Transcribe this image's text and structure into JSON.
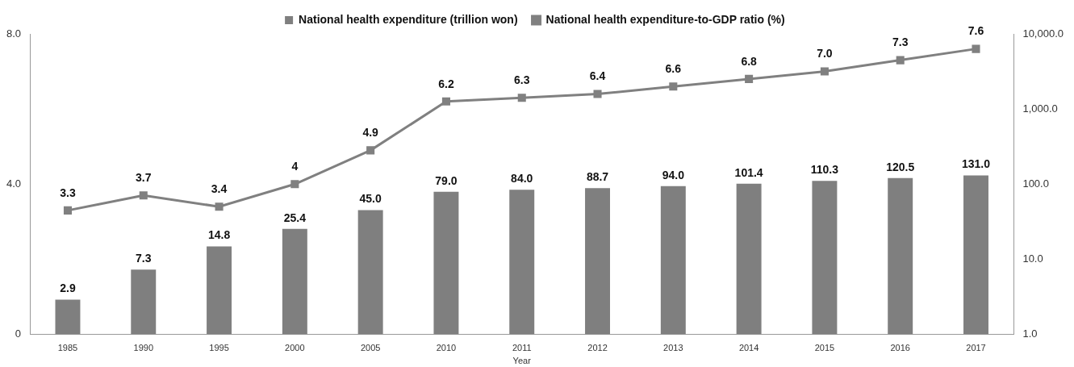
{
  "chart_data": {
    "type": "bar",
    "xlabel": "Year",
    "categories": [
      "1985",
      "1990",
      "1995",
      "2000",
      "2005",
      "2010",
      "2011",
      "2012",
      "2013",
      "2014",
      "2015",
      "2016",
      "2017"
    ],
    "series": [
      {
        "name": "National health expenditure (trillion won)",
        "axis": "y2",
        "color": "#7f7f7f",
        "values": [
          2.9,
          7.3,
          14.8,
          25.4,
          45.0,
          79.0,
          84.0,
          88.7,
          94.0,
          101.4,
          110.3,
          120.5,
          131.0
        ],
        "value_labels": [
          "2.9",
          "7.3",
          "14.8",
          "25.4",
          "45.0",
          "79.0",
          "84.0",
          "88.7",
          "94.0",
          "101.4",
          "110.3",
          "120.5",
          "131.0"
        ]
      },
      {
        "name": "National health expenditure-to-GDP ratio (%)",
        "type": "line",
        "axis": "y",
        "color": "#808080",
        "marker": "square",
        "values": [
          3.3,
          3.7,
          3.4,
          4,
          4.9,
          6.2,
          6.3,
          6.4,
          6.6,
          6.8,
          7.0,
          7.3,
          7.6
        ],
        "value_labels": [
          "3.3",
          "3.7",
          "3.4",
          "4",
          "4.9",
          "6.2",
          "6.3",
          "6.4",
          "6.6",
          "6.8",
          "7.0",
          "7.3",
          "7.6"
        ]
      }
    ],
    "ylim": [
      0,
      8
    ],
    "yticks": [
      {
        "value": 0,
        "label": "0"
      },
      {
        "value": 4,
        "label": "4.0"
      },
      {
        "value": 8,
        "label": "8.0"
      }
    ],
    "y2lim": [
      1,
      10000
    ],
    "y2ticks": [
      {
        "value": 1,
        "label": "1.0"
      },
      {
        "value": 10,
        "label": "10.0"
      },
      {
        "value": 100,
        "label": "100.0"
      },
      {
        "value": 1000,
        "label": "1,000.0"
      },
      {
        "value": 10000,
        "label": "10,000.0"
      }
    ],
    "log": "y2",
    "grid": false,
    "legend": "top"
  }
}
